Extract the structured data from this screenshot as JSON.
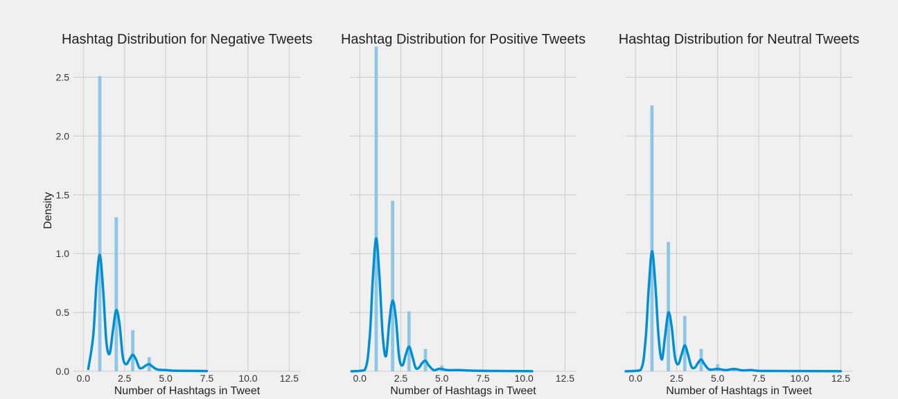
{
  "colors": {
    "background": "#f0f0f0",
    "bar": "#8fc6e5",
    "line": "#008fd5",
    "grid": "#cbcbcb"
  },
  "chart_data": [
    {
      "type": "histogram-kde",
      "title": "Hashtag Distribution for Negative Tweets",
      "xlabel": "Number of Hashtags in Tweet",
      "ylabel": "Density",
      "xlim": [
        -0.6,
        13.2
      ],
      "ylim": [
        0,
        2.85
      ],
      "xticks": [
        "0.0",
        "2.5",
        "5.0",
        "7.5",
        "10.0",
        "12.5"
      ],
      "yticks": [
        "0.0",
        "0.5",
        "1.0",
        "1.5",
        "2.0",
        "2.5"
      ],
      "bars": [
        {
          "x": 1,
          "value": 2.51
        },
        {
          "x": 2,
          "value": 1.31
        },
        {
          "x": 3,
          "value": 0.35
        },
        {
          "x": 4,
          "value": 0.12
        },
        {
          "x": 5,
          "value": 0.02
        },
        {
          "x": 6,
          "value": 0.005
        },
        {
          "x": 7,
          "value": 0.003
        }
      ],
      "kde": {
        "x": [
          0.3,
          0.6,
          0.8,
          1.0,
          1.2,
          1.4,
          1.6,
          1.8,
          2.0,
          2.2,
          2.4,
          2.6,
          2.8,
          3.0,
          3.2,
          3.4,
          3.6,
          3.8,
          4.0,
          4.2,
          4.5,
          5.0,
          5.5,
          6.0,
          7.0,
          7.5
        ],
        "y": [
          0.02,
          0.3,
          0.75,
          0.99,
          0.7,
          0.25,
          0.15,
          0.35,
          0.52,
          0.4,
          0.12,
          0.06,
          0.1,
          0.14,
          0.1,
          0.03,
          0.03,
          0.05,
          0.06,
          0.04,
          0.015,
          0.01,
          0.005,
          0.004,
          0.003,
          0.002
        ]
      }
    },
    {
      "type": "histogram-kde",
      "title": "Hashtag Distribution for Positive Tweets",
      "xlabel": "Number of Hashtags in Tweet",
      "ylabel": "",
      "xlim": [
        -0.6,
        13.2
      ],
      "ylim": [
        0,
        2.85
      ],
      "xticks": [
        "0.0",
        "2.5",
        "5.0",
        "7.5",
        "10.0",
        "12.5"
      ],
      "yticks": [],
      "bars": [
        {
          "x": 1,
          "value": 2.76
        },
        {
          "x": 2,
          "value": 1.45
        },
        {
          "x": 3,
          "value": 0.51
        },
        {
          "x": 4,
          "value": 0.19
        },
        {
          "x": 5,
          "value": 0.05
        },
        {
          "x": 6,
          "value": 0.01
        },
        {
          "x": 7,
          "value": 0.005
        }
      ],
      "kde": {
        "x": [
          -0.5,
          0.3,
          0.6,
          0.8,
          1.0,
          1.2,
          1.4,
          1.6,
          1.8,
          2.0,
          2.2,
          2.4,
          2.6,
          2.8,
          3.0,
          3.2,
          3.4,
          3.6,
          3.8,
          4.0,
          4.2,
          4.5,
          4.8,
          5.0,
          5.3,
          6.0,
          7.0,
          8.0,
          9.0,
          10.5
        ],
        "y": [
          0.0,
          0.01,
          0.28,
          0.8,
          1.13,
          0.8,
          0.3,
          0.13,
          0.42,
          0.6,
          0.45,
          0.12,
          0.05,
          0.14,
          0.21,
          0.13,
          0.03,
          0.03,
          0.07,
          0.09,
          0.05,
          0.01,
          0.02,
          0.02,
          0.01,
          0.01,
          0.005,
          0.003,
          0.002,
          0.001
        ]
      }
    },
    {
      "type": "histogram-kde",
      "title": "Hashtag Distribution for Neutral Tweets",
      "xlabel": "Number of Hashtags in Tweet",
      "ylabel": "",
      "xlim": [
        -0.6,
        13.2
      ],
      "ylim": [
        0,
        2.85
      ],
      "xticks": [
        "0.0",
        "2.5",
        "5.0",
        "7.5",
        "10.0",
        "12.5"
      ],
      "yticks": [],
      "bars": [
        {
          "x": 1,
          "value": 2.26
        },
        {
          "x": 2,
          "value": 1.1
        },
        {
          "x": 3,
          "value": 0.47
        },
        {
          "x": 4,
          "value": 0.19
        },
        {
          "x": 5,
          "value": 0.06
        },
        {
          "x": 6,
          "value": 0.02
        },
        {
          "x": 7,
          "value": 0.01
        }
      ],
      "kde": {
        "x": [
          -0.6,
          0.3,
          0.6,
          0.8,
          1.0,
          1.2,
          1.4,
          1.6,
          1.8,
          2.0,
          2.2,
          2.4,
          2.6,
          2.8,
          3.0,
          3.2,
          3.4,
          3.6,
          3.8,
          4.0,
          4.2,
          4.5,
          5.0,
          5.5,
          6.0,
          6.5,
          7.0,
          7.5,
          8.0,
          10.0,
          12.5
        ],
        "y": [
          0.0,
          0.01,
          0.25,
          0.7,
          1.02,
          0.75,
          0.3,
          0.1,
          0.3,
          0.5,
          0.38,
          0.12,
          0.06,
          0.14,
          0.22,
          0.14,
          0.04,
          0.03,
          0.07,
          0.1,
          0.06,
          0.015,
          0.02,
          0.01,
          0.02,
          0.008,
          0.01,
          0.004,
          0.003,
          0.002,
          0.001
        ]
      }
    }
  ]
}
